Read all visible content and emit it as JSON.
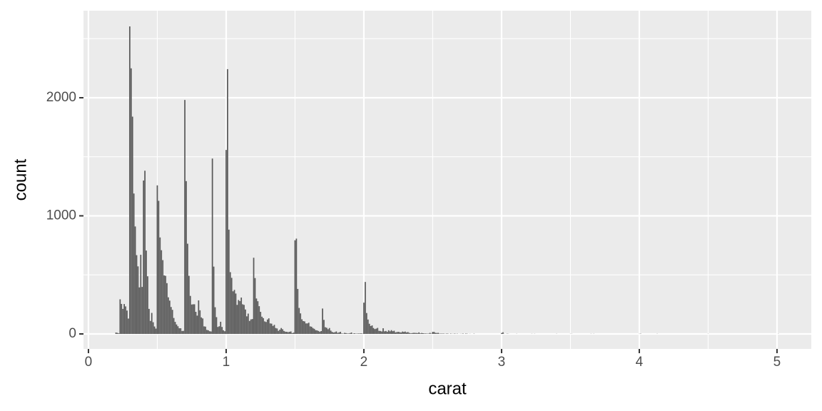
{
  "chart_data": {
    "type": "bar",
    "xlabel": "carat",
    "ylabel": "count",
    "color": "#595959",
    "x": [
      0.2,
      0.21,
      0.22,
      0.23,
      0.24,
      0.25,
      0.26,
      0.27,
      0.28,
      0.29,
      0.3,
      0.31,
      0.32,
      0.33,
      0.34,
      0.35,
      0.36,
      0.37,
      0.38,
      0.39,
      0.4,
      0.41,
      0.42,
      0.43,
      0.44,
      0.45,
      0.46,
      0.47,
      0.48,
      0.49,
      0.5,
      0.51,
      0.52,
      0.53,
      0.54,
      0.55,
      0.56,
      0.57,
      0.58,
      0.59,
      0.6,
      0.61,
      0.62,
      0.63,
      0.64,
      0.65,
      0.66,
      0.67,
      0.68,
      0.69,
      0.7,
      0.71,
      0.72,
      0.73,
      0.74,
      0.75,
      0.76,
      0.77,
      0.78,
      0.79,
      0.8,
      0.81,
      0.82,
      0.83,
      0.84,
      0.85,
      0.86,
      0.87,
      0.88,
      0.89,
      0.9,
      0.91,
      0.92,
      0.93,
      0.94,
      0.95,
      0.96,
      0.97,
      0.98,
      0.99,
      1,
      1.01,
      1.02,
      1.03,
      1.04,
      1.05,
      1.06,
      1.07,
      1.08,
      1.09,
      1.1,
      1.11,
      1.12,
      1.13,
      1.14,
      1.15,
      1.16,
      1.17,
      1.18,
      1.19,
      1.2,
      1.21,
      1.22,
      1.23,
      1.24,
      1.25,
      1.26,
      1.27,
      1.28,
      1.29,
      1.3,
      1.31,
      1.32,
      1.33,
      1.34,
      1.35,
      1.36,
      1.37,
      1.38,
      1.39,
      1.4,
      1.41,
      1.42,
      1.43,
      1.44,
      1.45,
      1.46,
      1.47,
      1.48,
      1.49,
      1.5,
      1.51,
      1.52,
      1.53,
      1.54,
      1.55,
      1.56,
      1.57,
      1.58,
      1.59,
      1.6,
      1.61,
      1.62,
      1.63,
      1.64,
      1.65,
      1.66,
      1.67,
      1.68,
      1.69,
      1.7,
      1.71,
      1.72,
      1.73,
      1.74,
      1.75,
      1.76,
      1.77,
      1.78,
      1.79,
      1.8,
      1.81,
      1.82,
      1.83,
      1.84,
      1.85,
      1.86,
      1.87,
      1.88,
      1.89,
      1.9,
      1.91,
      1.92,
      1.93,
      1.94,
      1.95,
      1.96,
      1.97,
      1.98,
      1.99,
      2,
      2.01,
      2.02,
      2.03,
      2.04,
      2.05,
      2.06,
      2.07,
      2.08,
      2.09,
      2.1,
      2.11,
      2.12,
      2.13,
      2.14,
      2.15,
      2.16,
      2.17,
      2.18,
      2.19,
      2.2,
      2.21,
      2.22,
      2.23,
      2.24,
      2.25,
      2.26,
      2.27,
      2.28,
      2.29,
      2.3,
      2.31,
      2.32,
      2.33,
      2.34,
      2.35,
      2.36,
      2.37,
      2.38,
      2.39,
      2.4,
      2.41,
      2.42,
      2.43,
      2.44,
      2.45,
      2.46,
      2.47,
      2.48,
      2.49,
      2.5,
      2.51,
      2.52,
      2.53,
      2.54,
      2.55,
      2.56,
      2.57,
      2.58,
      2.59,
      2.6,
      2.61,
      2.63,
      2.64,
      2.65,
      2.66,
      2.67,
      2.68,
      2.7,
      2.71,
      2.72,
      2.74,
      2.75,
      2.77,
      2.8,
      3,
      3.01,
      3.02,
      3.04,
      3.05,
      3.11,
      3.22,
      3.24,
      3.4,
      3.5,
      3.51,
      3.65,
      3.67,
      4,
      4.01,
      4.13,
      4.5,
      5.01
    ],
    "values": [
      12,
      9,
      5,
      293,
      254,
      212,
      253,
      233,
      198,
      130,
      2604,
      2249,
      1840,
      1189,
      910,
      667,
      572,
      394,
      670,
      398,
      1299,
      1382,
      706,
      488,
      212,
      110,
      178,
      99,
      63,
      45,
      1258,
      1127,
      817,
      709,
      625,
      496,
      492,
      430,
      310,
      282,
      228,
      204,
      135,
      102,
      80,
      65,
      48,
      48,
      25,
      26,
      1981,
      1294,
      764,
      492,
      322,
      249,
      251,
      251,
      187,
      155,
      284,
      200,
      140,
      131,
      64,
      62,
      34,
      31,
      23,
      21,
      1485,
      570,
      226,
      142,
      59,
      65,
      103,
      59,
      31,
      23,
      1558,
      2242,
      883,
      523,
      475,
      361,
      373,
      342,
      246,
      287,
      278,
      308,
      251,
      246,
      207,
      149,
      172,
      110,
      123,
      126,
      645,
      473,
      300,
      277,
      235,
      187,
      146,
      134,
      106,
      101,
      122,
      132,
      89,
      87,
      68,
      77,
      50,
      46,
      26,
      36,
      50,
      40,
      25,
      19,
      18,
      15,
      18,
      21,
      7,
      11,
      793,
      807,
      381,
      220,
      174,
      124,
      109,
      106,
      89,
      89,
      95,
      64,
      61,
      50,
      43,
      32,
      30,
      25,
      19,
      24,
      215,
      119,
      57,
      52,
      40,
      50,
      28,
      17,
      12,
      15,
      21,
      9,
      13,
      18,
      4,
      3,
      9,
      7,
      4,
      4,
      7,
      12,
      2,
      6,
      3,
      3,
      4,
      4,
      5,
      3,
      265,
      440,
      177,
      122,
      86,
      67,
      72,
      50,
      41,
      45,
      51,
      26,
      25,
      21,
      48,
      22,
      25,
      18,
      31,
      22,
      32,
      23,
      27,
      13,
      16,
      18,
      15,
      12,
      20,
      17,
      20,
      13,
      16,
      9,
      5,
      7,
      9,
      9,
      8,
      7,
      13,
      5,
      8,
      6,
      4,
      4,
      3,
      3,
      9,
      3,
      17,
      17,
      9,
      8,
      9,
      3,
      3,
      3,
      3,
      1,
      3,
      3,
      3,
      1,
      1,
      3,
      1,
      2,
      1,
      1,
      3,
      3,
      2,
      1,
      2,
      8,
      14,
      1,
      2,
      1,
      1,
      1,
      1,
      1,
      1,
      1,
      1,
      1,
      1,
      2,
      1,
      1,
      1
    ],
    "xlim": [
      -0.036,
      5.249
    ],
    "xticks": [
      0,
      1,
      2,
      3,
      4,
      5
    ],
    "ylim": [
      -127,
      2737
    ],
    "yticks": [
      0,
      1000,
      2000
    ],
    "grid": true,
    "minor_grid": true
  }
}
